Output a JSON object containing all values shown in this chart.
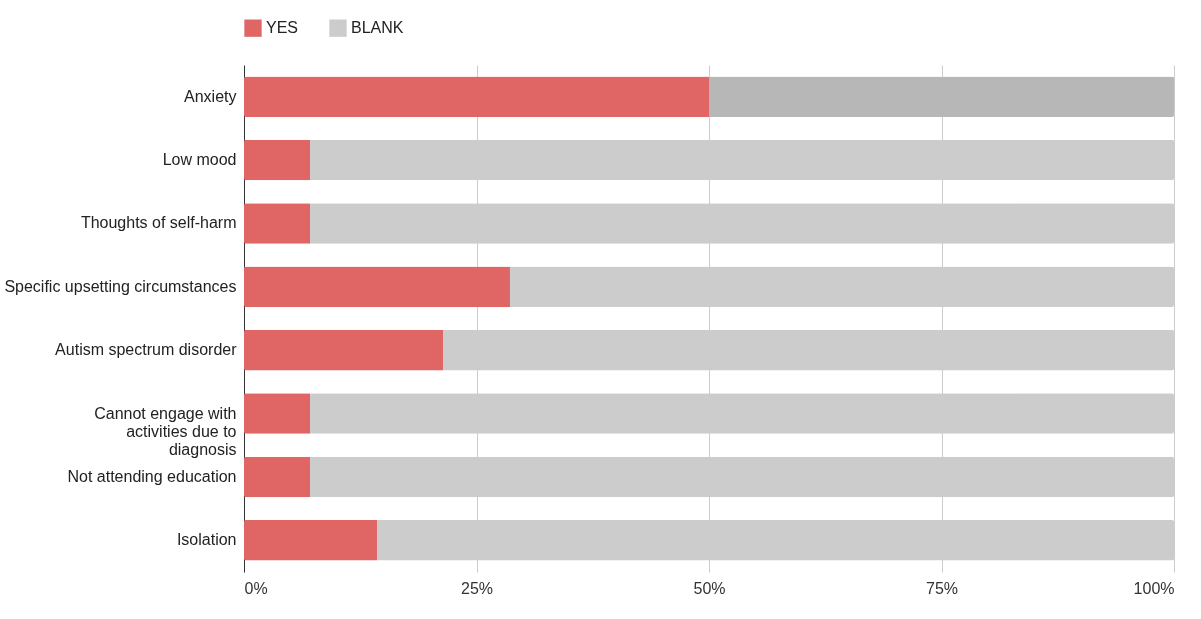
{
  "chart_data": {
    "type": "bar",
    "orientation": "horizontal",
    "stacked": true,
    "categories": [
      "Anxiety",
      "Low mood",
      "Thoughts of self-harm",
      "Specific upsetting circumstances",
      "Autism spectrum disorder",
      "Cannot engage with activities due to diagnosis",
      "Not attending education",
      "Isolation"
    ],
    "series": [
      {
        "name": "YES",
        "color": "#e06666",
        "values": [
          50,
          7.1,
          7.1,
          28.6,
          21.4,
          7.1,
          7.1,
          14.3
        ]
      },
      {
        "name": "BLANK",
        "color": "#cccccc",
        "colors": [
          "#b7b7b7",
          "#cccccc",
          "#cccccc",
          "#cccccc",
          "#cccccc",
          "#cccccc",
          "#cccccc",
          "#cccccc"
        ],
        "values": [
          50,
          92.9,
          92.9,
          71.4,
          78.6,
          92.9,
          92.9,
          85.7
        ]
      }
    ],
    "xlim": [
      0,
      100
    ],
    "xticks": [
      {
        "value": 0,
        "label": "0%"
      },
      {
        "value": 25,
        "label": "25%"
      },
      {
        "value": 50,
        "label": "50%"
      },
      {
        "value": 75,
        "label": "75%"
      },
      {
        "value": 100,
        "label": "100%"
      }
    ],
    "grid": "x",
    "legend": "top"
  }
}
